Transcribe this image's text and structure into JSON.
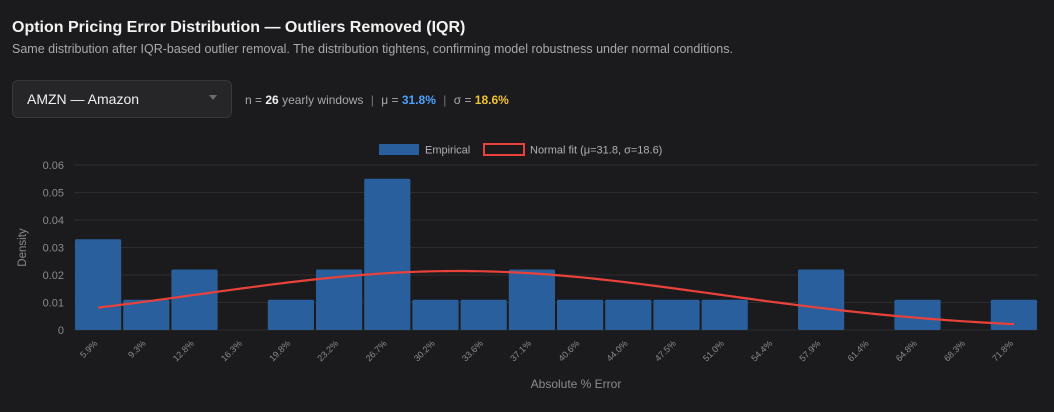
{
  "header": {
    "title": "Option Pricing Error Distribution — Outliers Removed (IQR)",
    "subtitle": "Same distribution after IQR-based outlier removal. The distribution tightens, confirming model robustness under normal conditions."
  },
  "controls": {
    "ticker_select": "AMZN — Amazon"
  },
  "stats": {
    "n_label": "n =",
    "n_value": "26",
    "n_suffix": "yearly windows",
    "mu_label": "μ =",
    "mu_value": "31.8%",
    "sigma_label": "σ =",
    "sigma_value": "18.6%",
    "separator": "|"
  },
  "colors": {
    "background": "#1b1b1d",
    "bar": "#2a5f9e",
    "fit_line": "#e8423a",
    "mu_accent": "#4d9fff",
    "sigma_accent": "#f2c232"
  },
  "chart_data": {
    "type": "bar",
    "xlabel": "Absolute % Error",
    "ylabel": "Density",
    "ylim": [
      0,
      0.06
    ],
    "yticks": [
      "0",
      "0.01",
      "0.02",
      "0.03",
      "0.04",
      "0.05",
      "0.06"
    ],
    "grid": true,
    "legend_position": "top-center",
    "legend": [
      "Empirical",
      "Normal fit (μ=31.8, σ=18.6)"
    ],
    "categories": [
      "5.9%",
      "9.3%",
      "12.8%",
      "16.3%",
      "19.8%",
      "23.2%",
      "26.7%",
      "30.2%",
      "33.6%",
      "37.1%",
      "40.6%",
      "44.0%",
      "47.5%",
      "51.0%",
      "54.4%",
      "57.9%",
      "61.4%",
      "64.8%",
      "68.3%",
      "71.8%"
    ],
    "series": [
      {
        "name": "Empirical",
        "type": "bar",
        "values": [
          0.033,
          0.011,
          0.022,
          0,
          0.011,
          0.022,
          0.055,
          0.011,
          0.011,
          0.022,
          0.011,
          0.011,
          0.011,
          0.011,
          0,
          0.022,
          0,
          0.011,
          0,
          0.011
        ]
      },
      {
        "name": "Normal fit (μ=31.8, σ=18.6)",
        "type": "line",
        "mu": 31.8,
        "sigma": 18.6
      }
    ]
  }
}
